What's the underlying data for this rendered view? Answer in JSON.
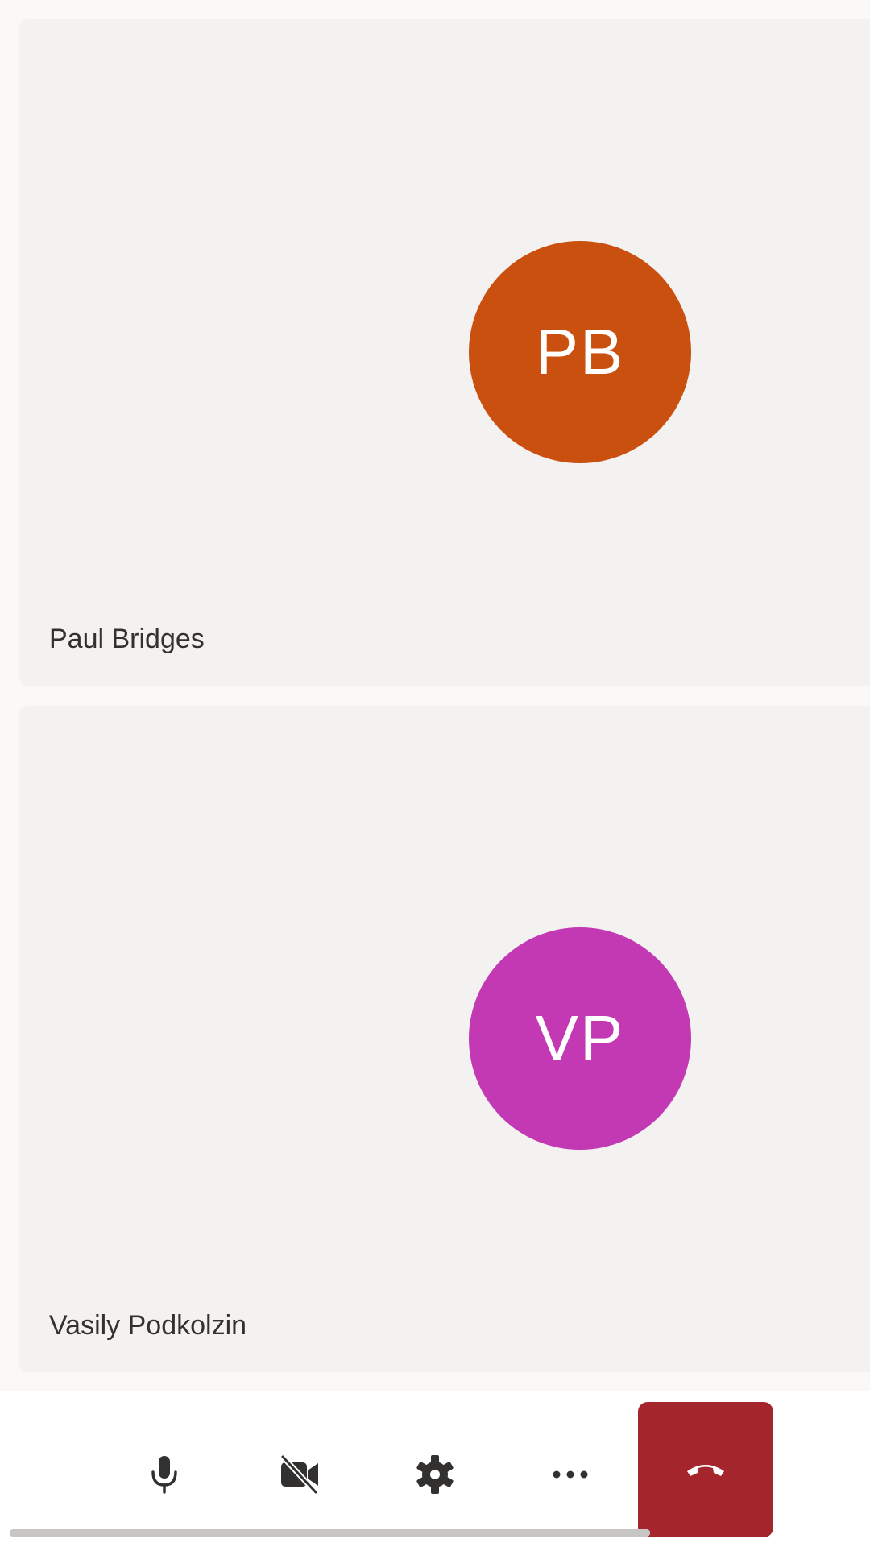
{
  "participants": [
    {
      "name": "Paul Bridges",
      "initials": "PB",
      "avatar_color": "#ca5010"
    },
    {
      "name": "Vasily Podkolzin",
      "initials": "VP",
      "avatar_color": "#c239b3"
    }
  ],
  "controls": {
    "microphone": {
      "icon": "microphone-icon",
      "state": "on"
    },
    "camera": {
      "icon": "camera-off-icon",
      "state": "off"
    },
    "settings": {
      "icon": "gear-icon"
    },
    "more": {
      "icon": "more-horizontal-icon"
    },
    "hangup": {
      "icon": "hangup-icon",
      "color": "#a4262c"
    }
  },
  "colors": {
    "background": "#faf9f8",
    "tile": "#f3f2f1",
    "text": "#323130"
  }
}
